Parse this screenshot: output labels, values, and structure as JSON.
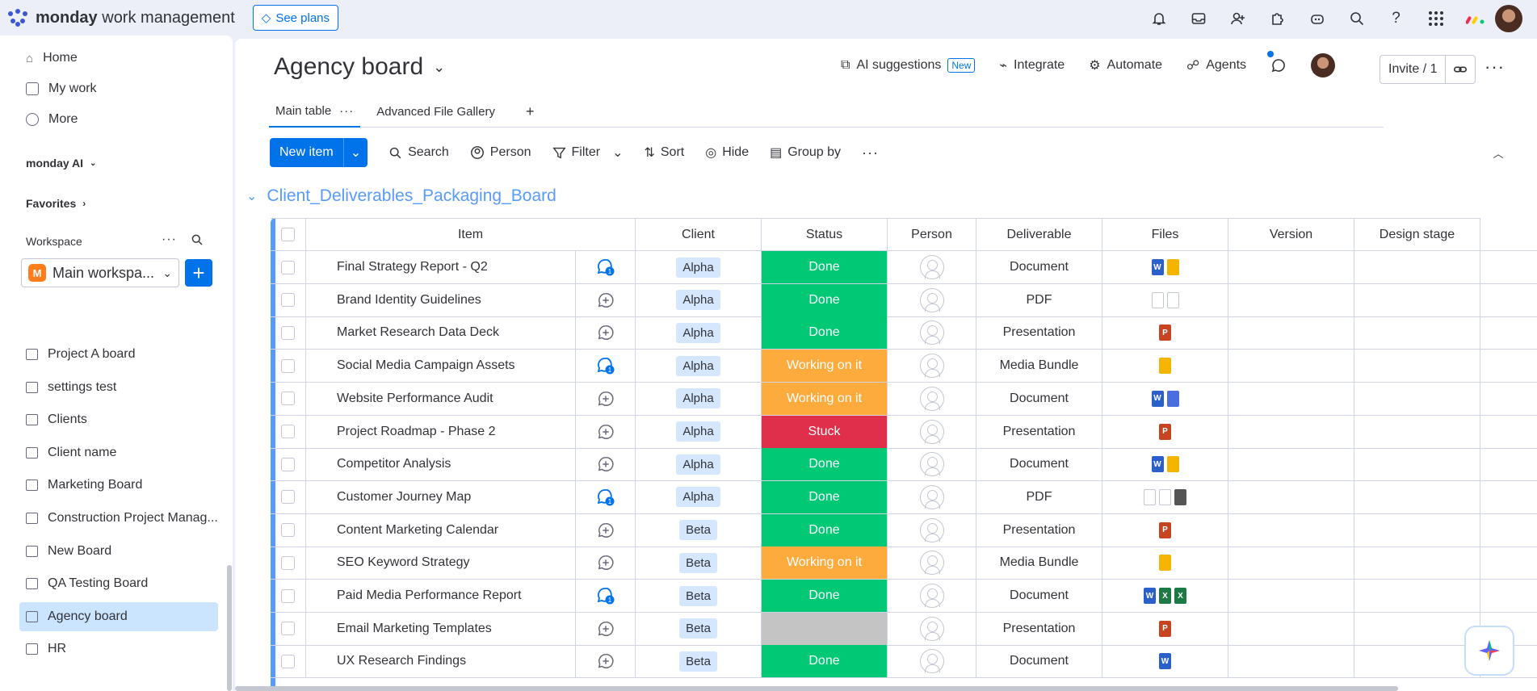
{
  "topbar": {
    "brand_bold": "monday",
    "brand_rest": " work management",
    "see_plans": "See plans"
  },
  "sidebar": {
    "nav": [
      {
        "label": "Home",
        "icon": "home-icon"
      },
      {
        "label": "My work",
        "icon": "calendar-check-icon"
      },
      {
        "label": "More",
        "icon": "more-circle-icon"
      }
    ],
    "monday_ai": "monday AI",
    "favorites": "Favorites",
    "workspace_label": "Workspace",
    "workspace_badge": "M",
    "workspace_name": "Main workspa...",
    "boards": [
      {
        "label": "Project A board",
        "active": false
      },
      {
        "label": "settings test",
        "active": false
      },
      {
        "label": "Clients",
        "active": false
      },
      {
        "label": "Client name",
        "active": false
      },
      {
        "label": "Marketing Board",
        "active": false
      },
      {
        "label": "Construction Project Manag...",
        "active": false
      },
      {
        "label": "New Board",
        "active": false
      },
      {
        "label": "QA Testing Board",
        "active": false
      },
      {
        "label": "Agency board",
        "active": true
      },
      {
        "label": "HR",
        "active": false
      }
    ]
  },
  "board": {
    "title": "Agency board",
    "actions": {
      "ai": "AI suggestions",
      "new_badge": "New",
      "integrate": "Integrate",
      "automate": "Automate",
      "agents": "Agents"
    },
    "invite": "Invite / 1",
    "tabs": [
      {
        "label": "Main table",
        "active": true
      },
      {
        "label": "Advanced File Gallery",
        "active": false
      }
    ],
    "toolbar": {
      "new_item": "New item",
      "search": "Search",
      "person": "Person",
      "filter": "Filter",
      "sort": "Sort",
      "hide": "Hide",
      "group_by": "Group by"
    },
    "group_title": "Client_Deliverables_Packaging_Board",
    "columns": [
      "Item",
      "Client",
      "Status",
      "Person",
      "Deliverable",
      "Files",
      "Version",
      "Design stage"
    ],
    "status_colors": {
      "Done": "#00c875",
      "Working on it": "#fdab3d",
      "Stuck": "#df2f4a",
      "": "#c4c4c4"
    },
    "rows": [
      {
        "item": "Final Strategy Report - Q2",
        "update": 1,
        "client": "Alpha",
        "status": "Done",
        "deliverable": "Document",
        "files": [
          "w",
          "y"
        ]
      },
      {
        "item": "Brand Identity Guidelines",
        "update": 0,
        "client": "Alpha",
        "status": "Done",
        "deliverable": "PDF",
        "files": [
          "t",
          "t"
        ]
      },
      {
        "item": "Market Research Data Deck",
        "update": 0,
        "client": "Alpha",
        "status": "Done",
        "deliverable": "Presentation",
        "files": [
          "p"
        ]
      },
      {
        "item": "Social Media Campaign Assets",
        "update": 1,
        "client": "Alpha",
        "status": "Working on it",
        "deliverable": "Media Bundle",
        "files": [
          "y"
        ]
      },
      {
        "item": "Website Performance Audit",
        "update": 0,
        "client": "Alpha",
        "status": "Working on it",
        "deliverable": "Document",
        "files": [
          "w",
          "g"
        ]
      },
      {
        "item": "Project Roadmap - Phase 2",
        "update": 0,
        "client": "Alpha",
        "status": "Stuck",
        "deliverable": "Presentation",
        "files": [
          "p"
        ]
      },
      {
        "item": "Competitor Analysis",
        "update": 0,
        "client": "Alpha",
        "status": "Done",
        "deliverable": "Document",
        "files": [
          "w",
          "y"
        ]
      },
      {
        "item": "Customer Journey Map",
        "update": 1,
        "client": "Alpha",
        "status": "Done",
        "deliverable": "PDF",
        "files": [
          "t",
          "t",
          "i"
        ]
      },
      {
        "item": "Content Marketing Calendar",
        "update": 0,
        "client": "Beta",
        "status": "Done",
        "deliverable": "Presentation",
        "files": [
          "p"
        ]
      },
      {
        "item": "SEO Keyword Strategy",
        "update": 0,
        "client": "Beta",
        "status": "Working on it",
        "deliverable": "Media Bundle",
        "files": [
          "y"
        ]
      },
      {
        "item": "Paid Media Performance Report",
        "update": 1,
        "client": "Beta",
        "status": "Done",
        "deliverable": "Document",
        "files": [
          "w",
          "x",
          "x"
        ]
      },
      {
        "item": "Email Marketing Templates",
        "update": 0,
        "client": "Beta",
        "status": "",
        "deliverable": "Presentation",
        "files": [
          "p"
        ]
      },
      {
        "item": "UX Research Findings",
        "update": 0,
        "client": "Beta",
        "status": "Done",
        "deliverable": "Document",
        "files": [
          "w"
        ]
      }
    ]
  }
}
